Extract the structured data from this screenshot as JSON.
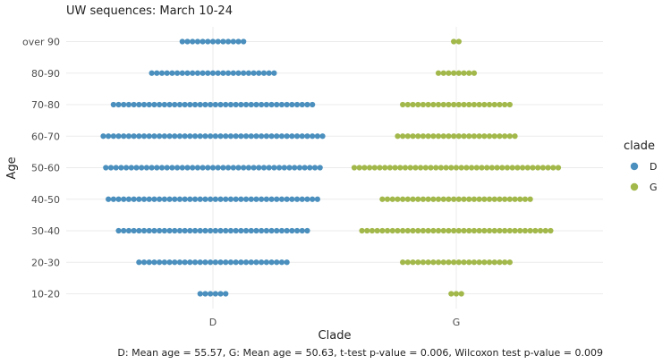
{
  "chart_data": {
    "type": "dotplot",
    "title": "UW sequences: March 10-24",
    "xlabel": "Clade",
    "ylabel": "Age",
    "categories": [
      "D",
      "G"
    ],
    "age_groups": [
      "10-20",
      "20-30",
      "30-40",
      "40-50",
      "50-60",
      "60-70",
      "70-80",
      "80-90",
      "over 90"
    ],
    "series": [
      {
        "name": "D",
        "color": "#4a8fbd",
        "counts": [
          6,
          30,
          38,
          42,
          43,
          44,
          40,
          25,
          13
        ]
      },
      {
        "name": "G",
        "color": "#a2b84a",
        "counts": [
          3,
          22,
          38,
          30,
          41,
          24,
          22,
          8,
          2
        ]
      }
    ],
    "grid": true,
    "legend": {
      "title": "clade",
      "position": "right",
      "entries": [
        "D",
        "G"
      ]
    },
    "caption": "D: Mean age = 55.57,  G: Mean age = 50.63,   t-test p-value = 0.006,  Wilcoxon test p-value = 0.009"
  }
}
